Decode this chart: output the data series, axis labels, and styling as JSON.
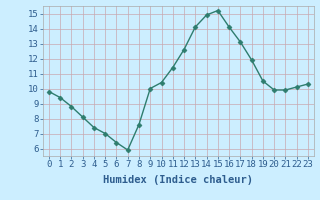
{
  "x": [
    0,
    1,
    2,
    3,
    4,
    5,
    6,
    7,
    8,
    9,
    10,
    11,
    12,
    13,
    14,
    15,
    16,
    17,
    18,
    19,
    20,
    21,
    22,
    23
  ],
  "y": [
    9.8,
    9.4,
    8.8,
    8.1,
    7.4,
    7.0,
    6.4,
    5.9,
    7.6,
    10.0,
    10.4,
    11.4,
    12.6,
    14.1,
    14.9,
    15.2,
    14.1,
    13.1,
    11.9,
    10.5,
    9.9,
    9.9,
    10.1,
    10.3
  ],
  "line_color": "#2e7d6e",
  "marker": "D",
  "marker_size": 2.5,
  "bg_color": "#cceeff",
  "grid_color_major": "#c8a8b0",
  "grid_color_minor": "#ddd0d4",
  "xlabel": "Humidex (Indice chaleur)",
  "xlim": [
    -0.5,
    23.5
  ],
  "ylim": [
    5.5,
    15.5
  ],
  "xticks": [
    0,
    1,
    2,
    3,
    4,
    5,
    6,
    7,
    8,
    9,
    10,
    11,
    12,
    13,
    14,
    15,
    16,
    17,
    18,
    19,
    20,
    21,
    22,
    23
  ],
  "yticks": [
    6,
    7,
    8,
    9,
    10,
    11,
    12,
    13,
    14,
    15
  ],
  "xlabel_fontsize": 7.5,
  "tick_fontsize": 6.5,
  "xlabel_color": "#2e5d8e",
  "tick_color": "#2e5d8e",
  "line_width": 1.0
}
